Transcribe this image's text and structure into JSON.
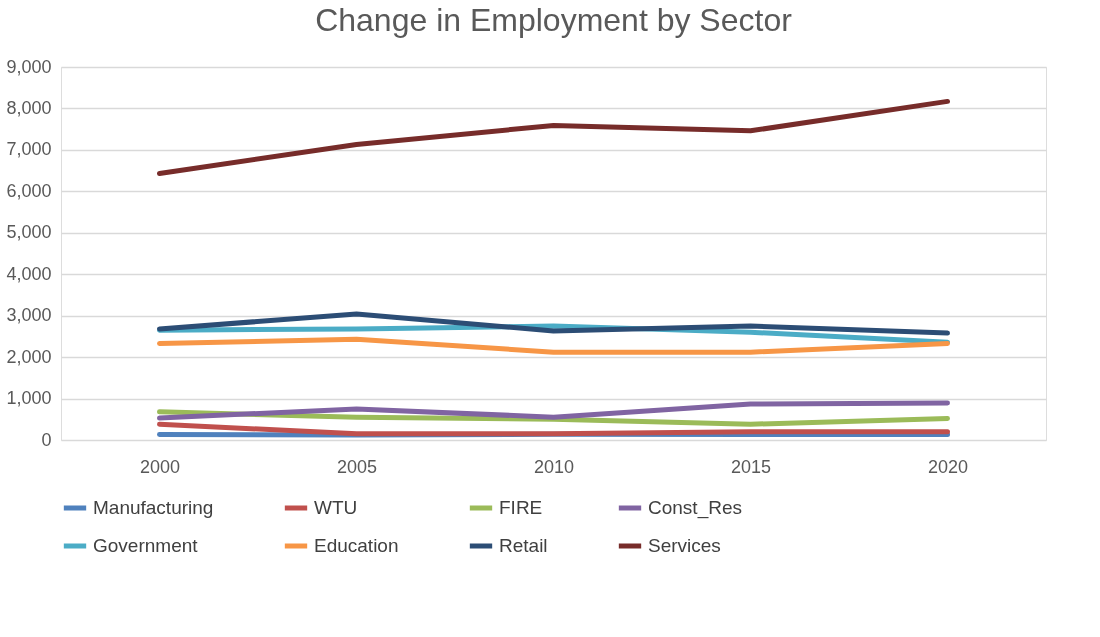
{
  "chart_data": {
    "type": "line",
    "title": "Change in Employment by Sector",
    "categories": [
      "2000",
      "2005",
      "2010",
      "2015",
      "2020"
    ],
    "series": [
      {
        "name": "Manufacturing",
        "color": "#4f81bd",
        "values": [
          130,
          120,
          140,
          130,
          130
        ]
      },
      {
        "name": "WTU",
        "color": "#c0504d",
        "values": [
          380,
          150,
          150,
          200,
          200
        ]
      },
      {
        "name": "FIRE",
        "color": "#9bbb59",
        "values": [
          680,
          550,
          500,
          380,
          520
        ]
      },
      {
        "name": "Const_Res",
        "color": "#8064a2",
        "values": [
          530,
          750,
          550,
          870,
          890
        ]
      },
      {
        "name": "Government",
        "color": "#4bacc6",
        "values": [
          2650,
          2680,
          2750,
          2600,
          2360
        ]
      },
      {
        "name": "Education",
        "color": "#f79646",
        "values": [
          2330,
          2430,
          2120,
          2120,
          2330
        ]
      },
      {
        "name": "Retail",
        "color": "#2c4d75",
        "values": [
          2680,
          3040,
          2630,
          2750,
          2580
        ]
      },
      {
        "name": "Services",
        "color": "#772c2a",
        "values": [
          6430,
          7130,
          7590,
          7460,
          8170
        ]
      }
    ],
    "ylim": [
      0,
      9000
    ],
    "yticks": [
      {
        "value": 0,
        "label": "0"
      },
      {
        "value": 1000,
        "label": "1,000"
      },
      {
        "value": 2000,
        "label": "2,000"
      },
      {
        "value": 3000,
        "label": "3,000"
      },
      {
        "value": 4000,
        "label": "4,000"
      },
      {
        "value": 5000,
        "label": "5,000"
      },
      {
        "value": 6000,
        "label": "6,000"
      },
      {
        "value": 7000,
        "label": "7,000"
      },
      {
        "value": 8000,
        "label": "8,000"
      },
      {
        "value": 9000,
        "label": "9,000"
      }
    ],
    "grid": "y",
    "legend": "bottom",
    "marker": "none",
    "line_style": "solid"
  }
}
